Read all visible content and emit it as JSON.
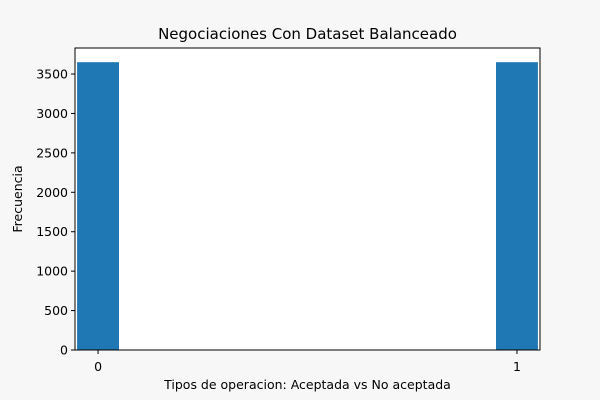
{
  "chart_data": {
    "type": "bar",
    "title": "Negociaciones Con Dataset Balanceado",
    "xlabel": "Tipos de operacion: Aceptada vs No aceptada",
    "ylabel": "Frecuencia",
    "categories": [
      "0",
      "1"
    ],
    "x": [
      0,
      1
    ],
    "values": [
      3650,
      3650
    ],
    "xlim": [
      -0.055,
      1.055
    ],
    "ylim": [
      0,
      3830
    ],
    "bar_width": 0.1,
    "yticks": [
      0,
      500,
      1000,
      1500,
      2000,
      2500,
      3000,
      3500
    ],
    "xticks": [
      0,
      1
    ],
    "bar_color": "#1f77b4",
    "grid": false,
    "legend": "none"
  }
}
